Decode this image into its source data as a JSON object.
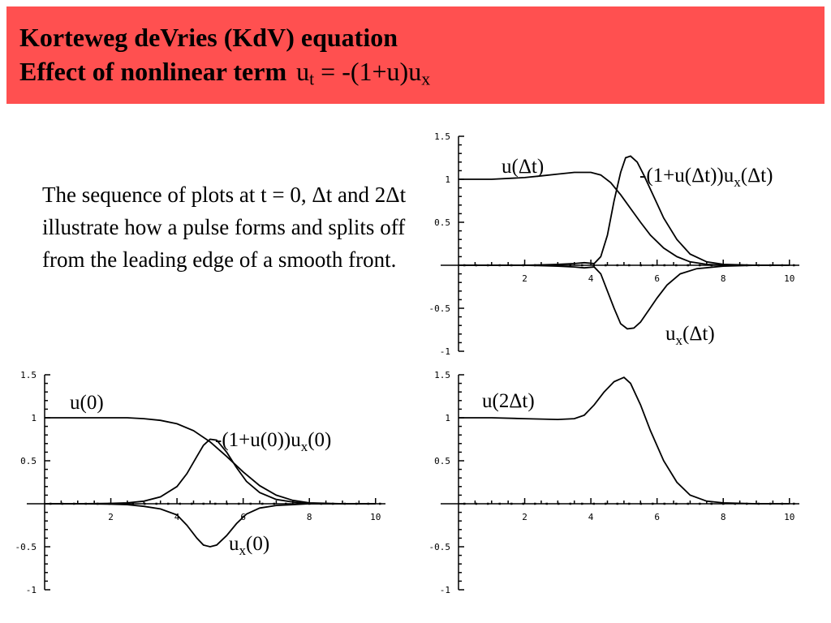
{
  "header": {
    "bg_color": "#ff5050",
    "line1": "Korteweg deVries (KdV) equation",
    "line2": "Effect of nonlinear term",
    "formula": {
      "u": "u",
      "t": "t",
      "eq": " = -(1+u)u",
      "x": "x"
    }
  },
  "description": "The sequence of plots at t = 0, Δt and 2Δt illustrate how a pulse forms and splits off from the leading edge of a smooth front.",
  "chart_data": [
    {
      "id": "t_dt",
      "type": "line",
      "xlim": [
        0,
        10.3
      ],
      "ylim": [
        -1,
        1.5
      ],
      "x_ticks": [
        "2",
        "4",
        "6",
        "8",
        "10"
      ],
      "y_ticks": [
        "1.5",
        "1",
        "0.5",
        "-0.5",
        "-1"
      ],
      "annotations": [
        {
          "parts": [
            {
              "t": "u(Δt)"
            }
          ]
        },
        {
          "parts": [
            {
              "t": "-(1+u(Δt))u"
            },
            {
              "t": "x",
              "sub": true
            },
            {
              "t": "(Δt)"
            }
          ]
        },
        {
          "parts": [
            {
              "t": "u"
            },
            {
              "t": "x",
              "sub": true
            },
            {
              "t": "(Δt)"
            }
          ]
        }
      ],
      "series": [
        {
          "x": [
            0,
            1,
            2,
            2.5,
            3,
            3.5,
            4,
            4.3,
            4.6,
            4.9,
            5.2,
            5.5,
            5.8,
            6.2,
            6.6,
            7,
            7.5,
            8,
            9,
            10
          ],
          "y": [
            1,
            1,
            1.02,
            1.04,
            1.06,
            1.08,
            1.08,
            1.05,
            0.96,
            0.82,
            0.66,
            0.5,
            0.35,
            0.2,
            0.1,
            0.04,
            0.01,
            0,
            0,
            0
          ]
        },
        {
          "x": [
            0,
            1,
            2,
            2.5,
            3,
            3.5,
            3.8,
            4.1,
            4.3,
            4.5,
            4.7,
            4.9,
            5.05,
            5.2,
            5.4,
            5.6,
            5.9,
            6.2,
            6.6,
            7,
            7.5,
            8,
            9,
            10
          ],
          "y": [
            0,
            0,
            0,
            0.005,
            0.01,
            0.02,
            0.03,
            0.02,
            0.1,
            0.35,
            0.75,
            1.08,
            1.25,
            1.27,
            1.2,
            1.05,
            0.8,
            0.55,
            0.3,
            0.13,
            0.04,
            0.01,
            0,
            0
          ]
        },
        {
          "x": [
            0,
            1,
            2,
            2.5,
            3,
            3.5,
            3.8,
            4.1,
            4.3,
            4.5,
            4.7,
            4.9,
            5.1,
            5.3,
            5.5,
            5.7,
            6,
            6.3,
            6.7,
            7.2,
            8,
            9,
            10
          ],
          "y": [
            0,
            0,
            0,
            -0.005,
            -0.01,
            -0.02,
            -0.03,
            -0.02,
            -0.1,
            -0.3,
            -0.5,
            -0.68,
            -0.74,
            -0.73,
            -0.66,
            -0.55,
            -0.38,
            -0.23,
            -0.1,
            -0.04,
            -0.01,
            0,
            0
          ]
        }
      ]
    },
    {
      "id": "t0",
      "type": "line",
      "xlim": [
        0,
        10.3
      ],
      "ylim": [
        -1,
        1.5
      ],
      "x_ticks": [
        "2",
        "4",
        "6",
        "8",
        "10"
      ],
      "y_ticks": [
        "1.5",
        "1",
        "0.5",
        "-0.5",
        "-1"
      ],
      "annotations": [
        {
          "parts": [
            {
              "t": "u(0)"
            }
          ]
        },
        {
          "parts": [
            {
              "t": "-(1+u(0))u"
            },
            {
              "t": "x",
              "sub": true
            },
            {
              "t": "(0)"
            }
          ]
        },
        {
          "parts": [
            {
              "t": "u"
            },
            {
              "t": "x",
              "sub": true
            },
            {
              "t": "(0)"
            }
          ]
        }
      ],
      "series": [
        {
          "x": [
            0,
            1,
            2,
            2.5,
            3,
            3.5,
            4,
            4.5,
            5,
            5.5,
            6,
            6.5,
            7,
            7.5,
            8,
            9,
            10
          ],
          "y": [
            1,
            1,
            1,
            1,
            0.99,
            0.97,
            0.93,
            0.85,
            0.72,
            0.55,
            0.37,
            0.21,
            0.1,
            0.04,
            0.01,
            0,
            0
          ]
        },
        {
          "x": [
            0,
            1,
            2,
            2.5,
            3,
            3.5,
            4,
            4.3,
            4.6,
            4.8,
            5,
            5.2,
            5.5,
            5.8,
            6.1,
            6.5,
            7,
            7.5,
            8,
            9,
            10
          ],
          "y": [
            0,
            0,
            0.005,
            0.01,
            0.03,
            0.08,
            0.2,
            0.35,
            0.55,
            0.68,
            0.75,
            0.74,
            0.6,
            0.42,
            0.26,
            0.13,
            0.05,
            0.02,
            0,
            0,
            0
          ]
        },
        {
          "x": [
            0,
            1,
            2,
            2.5,
            3,
            3.5,
            4,
            4.3,
            4.6,
            4.8,
            5,
            5.2,
            5.5,
            5.8,
            6.1,
            6.5,
            7,
            7.5,
            8,
            9,
            10
          ],
          "y": [
            0,
            0,
            -0.005,
            -0.01,
            -0.03,
            -0.06,
            -0.13,
            -0.25,
            -0.4,
            -0.48,
            -0.5,
            -0.48,
            -0.37,
            -0.23,
            -0.12,
            -0.05,
            -0.02,
            -0.01,
            0,
            0,
            0
          ]
        }
      ]
    },
    {
      "id": "t_2dt",
      "type": "line",
      "xlim": [
        0,
        10.3
      ],
      "ylim": [
        -1,
        1.5
      ],
      "x_ticks": [
        "2",
        "4",
        "6",
        "8",
        "10"
      ],
      "y_ticks": [
        "1.5",
        "1",
        "0.5",
        "-0.5",
        "-1"
      ],
      "annotations": [
        {
          "parts": [
            {
              "t": "u(2Δt)"
            }
          ]
        }
      ],
      "series": [
        {
          "x": [
            0,
            1,
            2,
            3,
            3.5,
            3.8,
            4.1,
            4.4,
            4.7,
            5.0,
            5.2,
            5.5,
            5.8,
            6.2,
            6.6,
            7,
            7.5,
            8,
            9,
            10
          ],
          "y": [
            1,
            1,
            0.99,
            0.98,
            0.99,
            1.03,
            1.15,
            1.3,
            1.42,
            1.47,
            1.4,
            1.15,
            0.85,
            0.5,
            0.25,
            0.1,
            0.03,
            0.01,
            0,
            0
          ]
        }
      ]
    }
  ]
}
